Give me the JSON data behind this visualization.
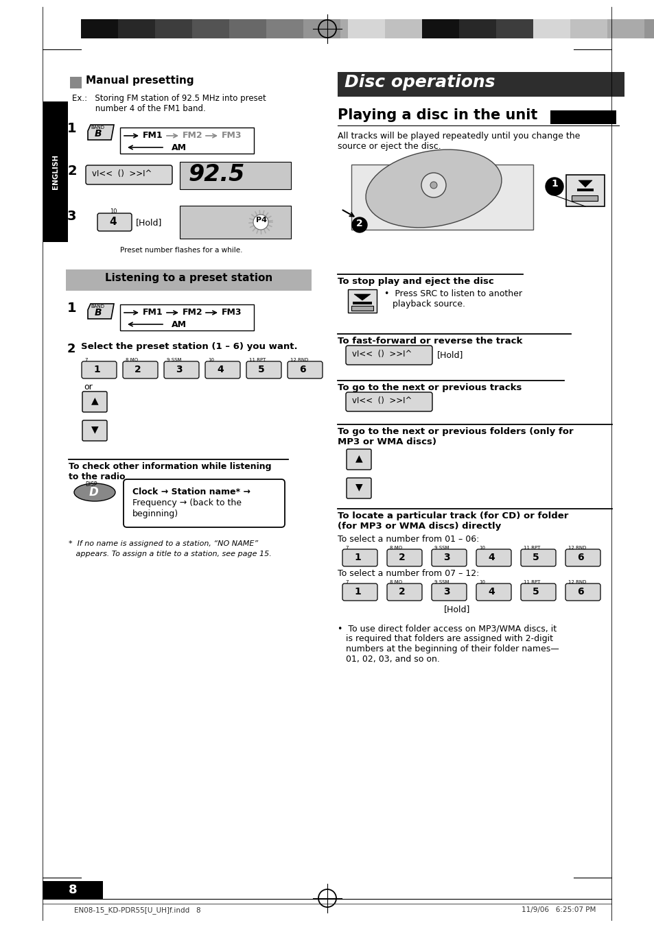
{
  "page_bg": "#ffffff",
  "top_bar_colors_left": [
    "#1a1a1a",
    "#2e2e2e",
    "#444444",
    "#595959",
    "#6e6e6e",
    "#838383",
    "#989898",
    "#adadad",
    "#c2c2c2",
    "#d7d7d7"
  ],
  "top_bar_colors_right": [
    "#d7d7d7",
    "#c2c2c2",
    "#2e2e2e",
    "#1a1a1a",
    "#595959",
    "#d7d7d7",
    "#c2c2c2",
    "#adadad",
    "#989898",
    "#838383"
  ],
  "english_label": "ENGLISH",
  "disc_ops_title": "Disc operations",
  "disc_ops_bg": "#2d2d2d",
  "playing_disc_title": "Playing a disc in the unit",
  "playing_disc_body_1": "All tracks will be played repeatedly until you change the",
  "playing_disc_body_2": "source or eject the disc.",
  "to_stop_heading": "To stop play and eject the disc",
  "to_stop_body_1": "Press SRC to listen to another",
  "to_stop_body_2": "playback source.",
  "to_fast_heading": "To fast-forward or reverse the track",
  "to_next_heading": "To go to the next or previous tracks",
  "to_folder_heading_1": "To go to the next or previous folders (only for",
  "to_folder_heading_2": "MP3 or WMA discs)",
  "to_locate_heading_1": "To locate a particular track (for CD) or folder",
  "to_locate_heading_2": "(for MP3 or WMA discs) directly",
  "to_locate_sub1": "To select a number from 01 – 06:",
  "to_locate_sub2": "To select a number from 07 – 12:",
  "to_locate_hold": "[Hold]",
  "to_locate_bullet_1": "•  To use direct folder access on MP3/WMA discs, it",
  "to_locate_bullet_2": "is required that folders are assigned with 2-digit",
  "to_locate_bullet_3": "numbers at the beginning of their folder names—",
  "to_locate_bullet_4": "01, 02, 03, and so on.",
  "listen_preset_title": "Listening to a preset station",
  "step2_text": "Select the preset station (1 – 6) you want.",
  "check_info_heading_1": "To check other information while listening",
  "check_info_heading_2": "to the radio",
  "clock_line1": "Clock → Station name* →",
  "clock_line2": "Frequency → (back to the",
  "clock_line3": "beginning)",
  "footnote_1": "*  If no name is assigned to a station, “NO NAME”",
  "footnote_2": "   appears. To assign a title to a station, see page 15.",
  "page_number": "8",
  "footer_left": "EN08-15_KD-PDR55[U_UH]f.indd   8",
  "footer_right": "11/9/06   6:25:07 PM",
  "ex_line1": "Ex.:   Storing FM station of 92.5 MHz into preset",
  "ex_line2": "         number 4 of the FM1 band.",
  "display_92": "92.5",
  "preset_caption": "Preset number flashes for a while.",
  "or_text": "or",
  "hold_text": "[Hold]",
  "fm1_bold": "FM1",
  "fm2_gray": "FM2",
  "fm3_gray": "FM3",
  "am_text": "AM",
  "btn_labels": [
    "1",
    "2",
    "3",
    "4",
    "5",
    "6"
  ],
  "btn_sups": [
    "7",
    "8 MO",
    "9 SSM",
    "10",
    "11 RPT",
    "12 RND"
  ],
  "seek_text": "vI<<  (  >>I^",
  "manual_presetting": "Manual presetting",
  "gray_sq_color": "#888888",
  "listen_bg": "#b0b0b0",
  "band_btn_bg": "#d8d8d8",
  "num_btn_bg": "#d8d8d8",
  "seek_btn_bg": "#d8d8d8",
  "updown_btn_bg": "#d8d8d8",
  "disp_btn_bg": "#888888",
  "display_bg": "#c8c8c8",
  "eject_btn_bg": "#e0e0e0",
  "clock_box_bg": "#ffffff"
}
